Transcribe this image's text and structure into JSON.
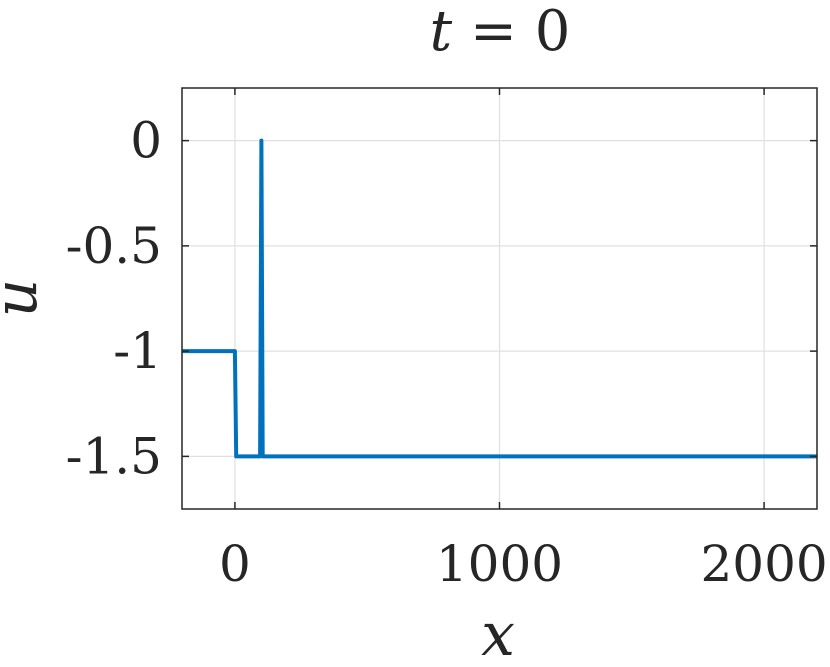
{
  "chart_data": {
    "type": "line",
    "title": "t = 0",
    "title_var": "t",
    "title_eq": " = ",
    "title_val": "0",
    "xlabel": "x",
    "ylabel": "u",
    "xlim": [
      -200,
      2200
    ],
    "ylim": [
      -1.75,
      0.25
    ],
    "xticks": [
      0,
      1000,
      2000
    ],
    "xtick_labels": [
      "0",
      "1000",
      "2000"
    ],
    "yticks": [
      0,
      -0.5,
      -1,
      -1.5
    ],
    "ytick_labels": [
      "0",
      "-0.5",
      "-1",
      "-1.5"
    ],
    "grid": true,
    "series": [
      {
        "color": "#0072BD",
        "x": [
          -200,
          0,
          5,
          95,
          100,
          105,
          2200
        ],
        "y": [
          -1,
          -1,
          -1.5,
          -1.5,
          0,
          -1.5,
          -1.5
        ]
      }
    ]
  }
}
